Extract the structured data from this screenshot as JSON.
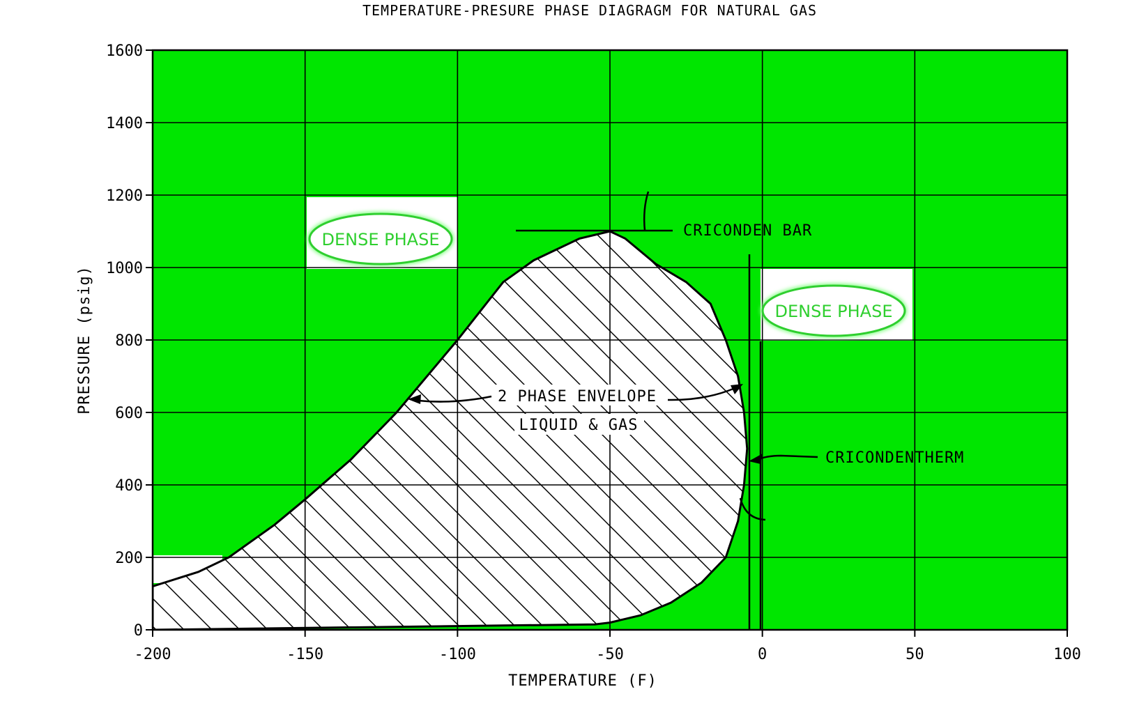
{
  "chart_data": {
    "type": "area",
    "title": "TEMPERATURE-PRESURE PHASE DIAGRAGM FOR NATURAL GAS",
    "xlabel": "TEMPERATURE (F)",
    "ylabel": "PRESSURE (psig)",
    "xlim": [
      -200,
      100
    ],
    "ylim": [
      0,
      1600
    ],
    "x_ticks": [
      "-200",
      "-150",
      "-100",
      "-50",
      "0",
      "50",
      "100"
    ],
    "y_ticks": [
      "0",
      "200",
      "400",
      "600",
      "800",
      "1000",
      "1200",
      "1400",
      "1600"
    ],
    "grid": true,
    "series": [
      {
        "name": "",
        "x": [
          -200,
          -185,
          -175,
          -160,
          -150,
          -135,
          -120,
          -100,
          -85,
          -75,
          -60,
          -50,
          -45,
          -35,
          -25,
          -17,
          -12,
          -8,
          -6,
          -5,
          -6,
          -8,
          -12,
          -20,
          -30,
          -40,
          -50,
          -55
        ],
        "y": [
          120,
          160,
          200,
          290,
          360,
          470,
          600,
          800,
          960,
          1020,
          1080,
          1100,
          1080,
          1010,
          960,
          900,
          800,
          700,
          600,
          500,
          400,
          300,
          200,
          130,
          75,
          40,
          20,
          15
        ]
      }
    ],
    "annotations": {
      "dense_phase_left": "DENSE PHASE",
      "dense_phase_right": "DENSE PHASE",
      "envelope_line1": "2 PHASE ENVELOPE",
      "envelope_line2": "LIQUID & GAS",
      "cricondenbar": "CRICONDEN BAR",
      "cricondentherm": "CRICONDENTHERM"
    },
    "colors": {
      "background_fill": "#00e600",
      "dense_label": "#2fcf2f",
      "dense_box": "#ffffff",
      "line": "#000000"
    }
  }
}
